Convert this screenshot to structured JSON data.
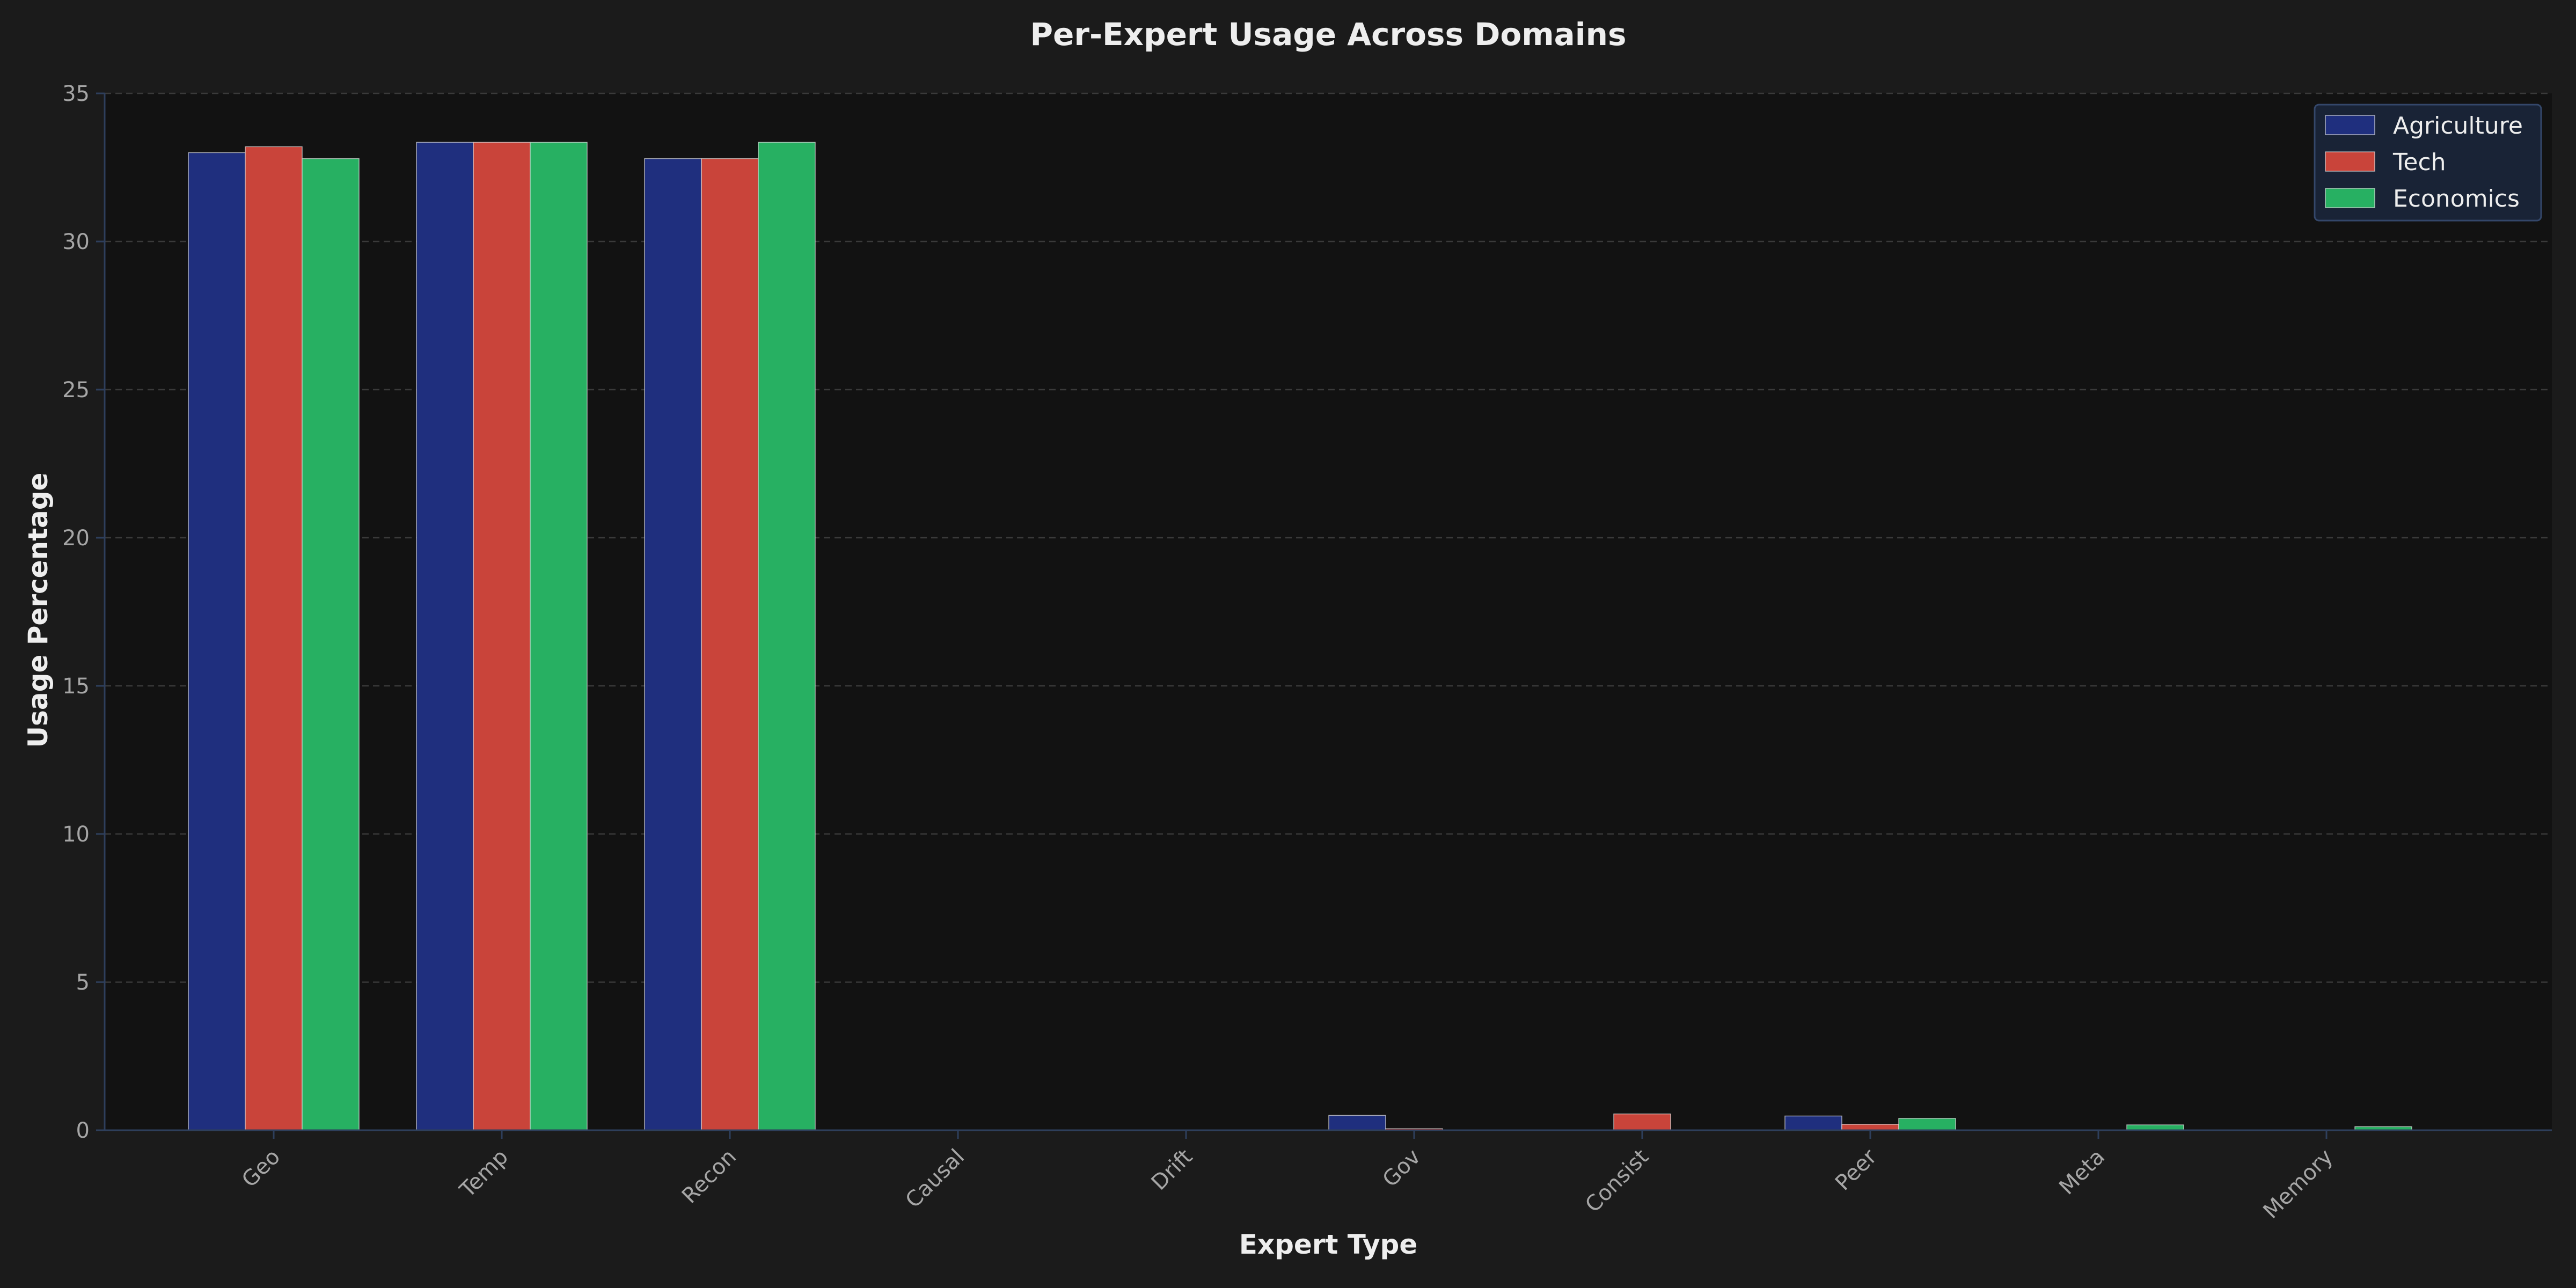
{
  "colors": {
    "figure_background": "#1b1b1b",
    "plot_background": "#121212",
    "grid": "#3a3a3a",
    "axis_spine": "#2e3f5c",
    "tick_label": "#a6a6a6",
    "title_text": "#eeeeee",
    "legend_background": "#1b263b",
    "legend_border": "#34476a",
    "bar_edge": "#d9d9d9"
  },
  "chart_data": {
    "type": "bar",
    "title": "Per-Expert Usage Across Domains",
    "xlabel": "Expert Type",
    "ylabel": "Usage Percentage",
    "categories": [
      "Geo",
      "Temp",
      "Recon",
      "Causal",
      "Drift",
      "Gov",
      "Consist",
      "Peer",
      "Meta",
      "Memory"
    ],
    "series": [
      {
        "name": "Agriculture",
        "color": "#1f2f7e",
        "values": [
          33.0,
          33.35,
          32.8,
          0,
          0,
          0.5,
          0,
          0.48,
          0,
          0
        ]
      },
      {
        "name": "Tech",
        "color": "#c9443a",
        "values": [
          33.2,
          33.35,
          32.8,
          0,
          0,
          0.05,
          0.55,
          0.2,
          0,
          0
        ]
      },
      {
        "name": "Economics",
        "color": "#27b062",
        "values": [
          32.8,
          33.35,
          33.35,
          0,
          0,
          0,
          0,
          0.4,
          0.18,
          0.12
        ]
      }
    ],
    "ylim": [
      0,
      35
    ],
    "yticks": [
      0,
      5,
      10,
      15,
      20,
      25,
      30,
      35
    ],
    "grid": true,
    "grid_style": "dashed",
    "legend_position": "top-right",
    "xtick_rotation": -45
  }
}
